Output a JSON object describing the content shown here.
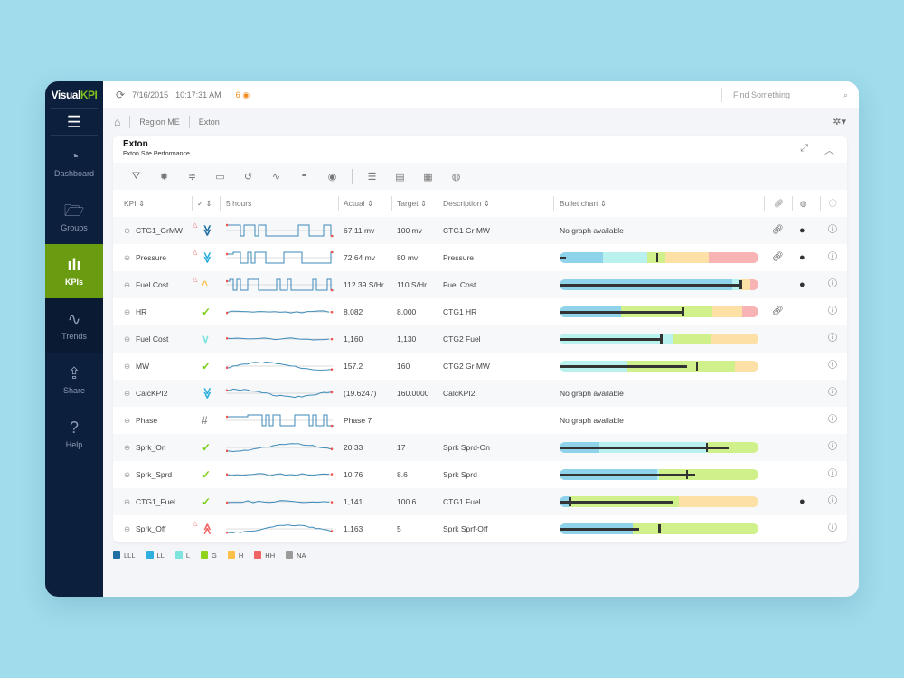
{
  "app": {
    "logo_a": "Visual",
    "logo_b": "KPI",
    "date": "7/16/2015",
    "time": "10:17:31 AM",
    "alert_count": "6",
    "search_placeholder": "Find Something"
  },
  "sidebar": [
    {
      "label": "Dashboard",
      "icon": "◔"
    },
    {
      "label": "Groups",
      "icon": "🗁"
    },
    {
      "label": "KPIs",
      "icon": "ılı"
    },
    {
      "label": "Trends",
      "icon": "∿"
    },
    {
      "label": "Share",
      "icon": "⇪"
    },
    {
      "label": "Help",
      "icon": "?"
    }
  ],
  "breadcrumb": [
    "Region ME",
    "Exton"
  ],
  "panel": {
    "title": "Exton",
    "subtitle": "Exton Site Performance"
  },
  "columns": {
    "kpi": "KPI",
    "check": "✓",
    "trend": "5 hours",
    "actual": "Actual",
    "target": "Target",
    "description": "Description",
    "bullet": "Bullet chart"
  },
  "colors": {
    "LLL": "#1f6fa3",
    "LL": "#8fd3ea",
    "L": "#b8f1ee",
    "G": "#cff08a",
    "H": "#fde0a6",
    "HH": "#f8b4b4",
    "NA": "#9a9a9a"
  },
  "legend": [
    {
      "key": "LLL",
      "color": "#1f6fa3"
    },
    {
      "key": "LL",
      "color": "#2db0dd"
    },
    {
      "key": "L",
      "color": "#7fe3dd"
    },
    {
      "key": "G",
      "color": "#8fd41a"
    },
    {
      "key": "H",
      "color": "#fbbf4a"
    },
    {
      "key": "HH",
      "color": "#f06464"
    },
    {
      "key": "NA",
      "color": "#9a9a9a"
    }
  ],
  "no_graph": "No graph available",
  "rows": [
    {
      "name": "CTG1_GrMW",
      "status": "≫",
      "status_color": "#1f6fa3",
      "alert": true,
      "spark": "step",
      "actual": "67.11 mv",
      "target": "100 mv",
      "description": "CTG1 Gr MW",
      "bullet": null,
      "link": true,
      "globe": true
    },
    {
      "name": "Pressure",
      "status": "≫",
      "status_color": "#2db0dd",
      "alert": true,
      "spark": "step",
      "actual": "72.64 mv",
      "target": "80 mv",
      "description": "Pressure",
      "bullet": {
        "bands": [
          [
            "LL",
            0.22
          ],
          [
            "L",
            0.44
          ],
          [
            "G",
            0.53
          ],
          [
            "H",
            0.75
          ],
          [
            "HH",
            1
          ]
        ],
        "value": 0.03,
        "target": 0.49
      },
      "link": true,
      "globe": true
    },
    {
      "name": "Fuel Cost",
      "status": "^",
      "status_color": "#fbbf4a",
      "alert": true,
      "spark": "step",
      "actual": "112.39 S/Hr",
      "target": "110 S/Hr",
      "description": "Fuel Cost",
      "bullet": {
        "bands": [
          [
            "LL",
            0.87
          ],
          [
            "L",
            0.91
          ],
          [
            "H",
            0.96
          ],
          [
            "HH",
            1
          ]
        ],
        "value": 0.91,
        "target": 0.91
      },
      "link": false,
      "globe": true
    },
    {
      "name": "HR",
      "status": "✓",
      "status_color": "#7ccf1a",
      "alert": false,
      "spark": "flat",
      "actual": "8,082",
      "target": "8,000",
      "description": "CTG1 HR",
      "bullet": {
        "bands": [
          [
            "LL",
            0.31
          ],
          [
            "G",
            0.77
          ],
          [
            "H",
            0.92
          ],
          [
            "HH",
            1
          ]
        ],
        "value": 0.62,
        "target": 0.62
      },
      "link": true,
      "globe": false
    },
    {
      "name": "Fuel Cost",
      "status": "∨",
      "status_color": "#7fe3dd",
      "alert": false,
      "spark": "flat",
      "actual": "1,160",
      "target": "1,130",
      "description": "CTG2 Fuel",
      "bullet": {
        "bands": [
          [
            "L",
            0.57
          ],
          [
            "G",
            0.76
          ],
          [
            "H",
            1
          ]
        ],
        "value": 0.52,
        "target": 0.51
      },
      "link": false,
      "globe": false
    },
    {
      "name": "MW",
      "status": "✓",
      "status_color": "#7ccf1a",
      "alert": false,
      "spark": "wave",
      "actual": "157.2",
      "target": "160",
      "description": "CTG2 Gr MW",
      "bullet": {
        "bands": [
          [
            "L",
            0.34
          ],
          [
            "G",
            0.88
          ],
          [
            "H",
            1
          ]
        ],
        "value": 0.64,
        "target": 0.69
      },
      "link": false,
      "globe": false
    },
    {
      "name": "CalcKPI2",
      "status": "≫",
      "status_color": "#2db0dd",
      "alert": false,
      "spark": "wave",
      "actual": "(19.6247)",
      "target": "160.0000",
      "description": "CalcKPI2",
      "bullet": null,
      "link": false,
      "globe": false
    },
    {
      "name": "Phase",
      "status": "#",
      "status_color": "#888888",
      "alert": false,
      "spark": "step",
      "actual": "Phase 7",
      "target": "",
      "description": "",
      "bullet": null,
      "link": false,
      "globe": false
    },
    {
      "name": "Sprk_On",
      "status": "✓",
      "status_color": "#7ccf1a",
      "alert": false,
      "spark": "wave",
      "actual": "20.33",
      "target": "17",
      "description": "Sprk Sprd-On",
      "bullet": {
        "bands": [
          [
            "LL",
            0.2
          ],
          [
            "L",
            0.74
          ],
          [
            "G",
            1
          ]
        ],
        "value": 0.85,
        "target": 0.74
      },
      "link": false,
      "globe": false
    },
    {
      "name": "Sprk_Sprd",
      "status": "✓",
      "status_color": "#7ccf1a",
      "alert": false,
      "spark": "flat",
      "actual": "10.76",
      "target": "8.6",
      "description": "Sprk Sprd",
      "bullet": {
        "bands": [
          [
            "LL",
            0.49
          ],
          [
            "L",
            0.5
          ],
          [
            "G",
            1
          ]
        ],
        "value": 0.68,
        "target": 0.64
      },
      "link": false,
      "globe": false
    },
    {
      "name": "CTG1_Fuel",
      "status": "✓",
      "status_color": "#7ccf1a",
      "alert": false,
      "spark": "flat",
      "actual": "1,141",
      "target": "100.6",
      "description": "CTG1 Fuel",
      "bullet": {
        "bands": [
          [
            "LL",
            0.05
          ],
          [
            "G",
            0.6
          ],
          [
            "H",
            1
          ]
        ],
        "value": 0.57,
        "target": 0.05
      },
      "link": false,
      "globe": true
    },
    {
      "name": "Sprk_Off",
      "status": "≪",
      "status_color": "#f06464",
      "alert": true,
      "spark": "wave",
      "actual": "1,163",
      "target": "5",
      "description": "Sprk Sprf-Off",
      "bullet": {
        "bands": [
          [
            "LL",
            0.37
          ],
          [
            "G",
            1
          ]
        ],
        "value": 0.4,
        "target": 0.5
      },
      "link": false,
      "globe": false
    }
  ]
}
